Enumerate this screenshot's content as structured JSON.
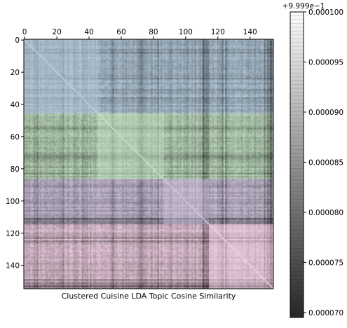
{
  "chart_data": {
    "type": "heatmap",
    "title": "",
    "xlabel": "Clustered Cuisine LDA Topic Cosine Similarity",
    "ylabel": "",
    "n": 155,
    "xlim": [
      0,
      155
    ],
    "ylim": [
      155,
      0
    ],
    "x_ticks": [
      "0",
      "20",
      "40",
      "60",
      "80",
      "100",
      "120",
      "140"
    ],
    "y_ticks": [
      "0",
      "20",
      "40",
      "60",
      "80",
      "100",
      "120",
      "140"
    ],
    "tick_values": [
      0,
      20,
      40,
      60,
      80,
      100,
      120,
      140
    ],
    "clusters": [
      {
        "start": 0,
        "end": 46,
        "color": "#b9cfe0"
      },
      {
        "start": 46,
        "end": 87,
        "color": "#c4e2c4"
      },
      {
        "start": 87,
        "end": 115,
        "color": "#d2c6df"
      },
      {
        "start": 115,
        "end": 155,
        "color": "#f0d0e3"
      }
    ],
    "colorbar": {
      "offset_label": "+9.999e−1",
      "range": [
        6.95e-05,
        0.0001
      ],
      "ticks": [
        "0.000070",
        "0.000075",
        "0.000080",
        "0.000085",
        "0.000090",
        "0.000095",
        "0.000100"
      ],
      "tick_values": [
        7e-05,
        7.5e-05,
        8e-05,
        8.5e-05,
        9e-05,
        9.5e-05,
        0.0001
      ]
    }
  }
}
